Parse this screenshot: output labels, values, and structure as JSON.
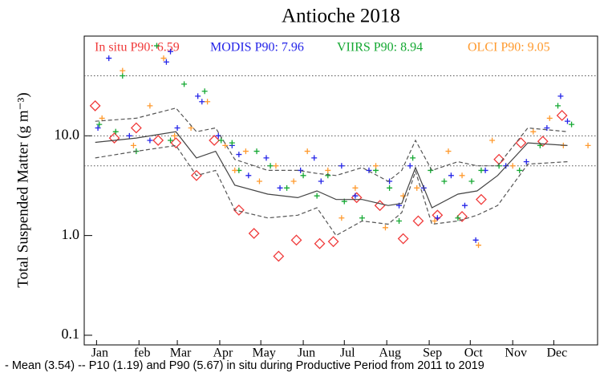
{
  "chart_data": {
    "type": "scatter",
    "title": "Antioche 2018",
    "y_label": "Total Suspended Matter (g m⁻³)",
    "footnote": "- Mean (3.54) -- P10 (1.19) and P90 (5.67) in situ during Productive Period from 2011 to 2019",
    "log_y": true,
    "xlim": [
      -8,
      367
    ],
    "xticks": [
      {
        "value": 1,
        "label": "Jan"
      },
      {
        "value": 32,
        "label": "feb"
      },
      {
        "value": 60,
        "label": "Mar"
      },
      {
        "value": 91,
        "label": "Apr"
      },
      {
        "value": 121,
        "label": "May"
      },
      {
        "value": 152,
        "label": "Jun"
      },
      {
        "value": 182,
        "label": "Jul"
      },
      {
        "value": 213,
        "label": "Aug"
      },
      {
        "value": 244,
        "label": "Sep"
      },
      {
        "value": 274,
        "label": "Oct"
      },
      {
        "value": 305,
        "label": "Nov"
      },
      {
        "value": 335,
        "label": "Dec"
      }
    ],
    "ylim": [
      0.08,
      100
    ],
    "yticks": [
      0.1,
      {
        "value": 1,
        "label": "1.0"
      },
      {
        "value": 10,
        "label": "10.0"
      }
    ],
    "hlines": [
      40,
      10,
      5
    ],
    "series": [
      {
        "name": "In situ P90: 6.59",
        "color": "#f03a3a",
        "marker": "diamond",
        "x": [
          0,
          14,
          30,
          46,
          59,
          74,
          87,
          105,
          116,
          134,
          147,
          164,
          174,
          191,
          208,
          225,
          236,
          250,
          268,
          282,
          295,
          311,
          327,
          341
        ],
        "values": [
          20,
          9.5,
          12,
          9.0,
          8.5,
          4.0,
          9.0,
          1.8,
          1.05,
          0.62,
          0.9,
          0.83,
          0.87,
          2.4,
          2.0,
          0.93,
          1.4,
          1.6,
          1.55,
          2.3,
          5.8,
          8.5,
          8.8,
          16
        ]
      },
      {
        "name": "MODIS P90: 7.96",
        "color": "#2424e8",
        "marker": "plus",
        "x": [
          2,
          10,
          25,
          40,
          52,
          55,
          60,
          75,
          78,
          90,
          100,
          105,
          112,
          125,
          135,
          150,
          160,
          165,
          180,
          190,
          200,
          215,
          222,
          230,
          240,
          250,
          260,
          270,
          278,
          285,
          300,
          315,
          330,
          340,
          345
        ],
        "values": [
          12,
          60,
          10,
          9,
          55,
          70,
          12,
          25,
          22,
          10,
          8,
          6.5,
          4,
          6,
          3,
          4.5,
          6,
          3.5,
          5,
          2.5,
          4.5,
          3.5,
          2,
          5,
          3,
          1.5,
          4,
          2,
          0.9,
          4.5,
          5,
          5.5,
          12,
          25,
          14
        ]
      },
      {
        "name": "VIIRS P90: 8.94",
        "color": "#14a832",
        "marker": "plus",
        "x": [
          3,
          15,
          20,
          30,
          45,
          55,
          65,
          80,
          92,
          100,
          105,
          118,
          128,
          140,
          152,
          162,
          170,
          182,
          195,
          205,
          215,
          222,
          232,
          245,
          255,
          265,
          275,
          282,
          295,
          310,
          325,
          338,
          348
        ],
        "values": [
          13,
          11,
          40,
          7,
          80,
          9,
          33,
          28,
          9,
          8.5,
          4.5,
          7,
          5,
          3,
          4,
          2.5,
          4,
          2.2,
          1.5,
          4.5,
          3,
          1.4,
          6,
          4.5,
          3.5,
          1.5,
          3.5,
          4.5,
          5,
          4.5,
          8,
          20,
          13
        ]
      },
      {
        "name": "OLCI P90: 9.05",
        "color": "#ff9a2e",
        "marker": "plus",
        "x": [
          5,
          20,
          28,
          40,
          50,
          58,
          70,
          82,
          95,
          102,
          110,
          120,
          132,
          145,
          155,
          170,
          180,
          190,
          205,
          212,
          225,
          235,
          248,
          258,
          268,
          280,
          290,
          305,
          320,
          332,
          342,
          360
        ],
        "values": [
          15,
          45,
          8,
          20,
          60,
          10,
          12,
          22,
          8,
          4.5,
          7,
          3.5,
          5,
          3.5,
          7,
          4.5,
          1.5,
          3,
          5,
          1.2,
          2.5,
          3,
          1.4,
          7,
          4,
          0.8,
          9,
          5,
          11,
          15,
          8,
          8
        ]
      },
      {
        "color": "#444444",
        "line_style": "solid",
        "x": [
          0,
          30,
          59,
          74,
          88,
          102,
          126,
          148,
          162,
          176,
          195,
          214,
          224,
          234,
          246,
          265,
          279,
          294,
          316,
          345
        ],
        "values": [
          8.6,
          9.5,
          11,
          6,
          7,
          3.2,
          2.6,
          2.4,
          2.8,
          2.3,
          2.3,
          2.0,
          2.1,
          4.8,
          1.9,
          2.6,
          2.8,
          4.0,
          8.5,
          8.0
        ]
      },
      {
        "color": "#555555",
        "line_style": "dashed",
        "x": [
          0,
          30,
          59,
          74,
          88,
          102,
          126,
          148,
          162,
          176,
          195,
          214,
          224,
          234,
          246,
          265,
          279,
          294,
          316,
          345
        ],
        "values": [
          14,
          15,
          19,
          11,
          12,
          5.8,
          4.5,
          4.5,
          4.2,
          4.0,
          4.8,
          3.5,
          4.5,
          9,
          4.5,
          5.5,
          5.0,
          5.0,
          12,
          11
        ]
      },
      {
        "color": "#555555",
        "line_style": "dashed",
        "x": [
          0,
          30,
          59,
          74,
          88,
          102,
          126,
          148,
          162,
          176,
          195,
          214,
          224,
          234,
          246,
          265,
          279,
          294,
          316,
          345
        ],
        "values": [
          6,
          7,
          8,
          4,
          4.5,
          1.8,
          1.5,
          1.6,
          1.9,
          1.0,
          1.4,
          1.3,
          1.7,
          4.4,
          1.3,
          1.4,
          1.6,
          2.0,
          5.2,
          5.5
        ]
      }
    ]
  }
}
